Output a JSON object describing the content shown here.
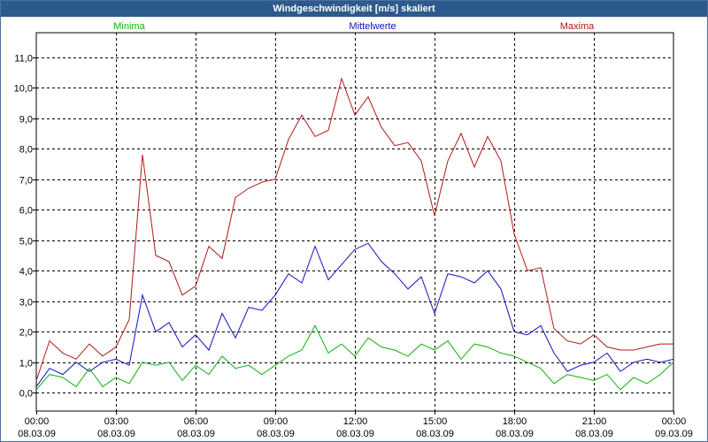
{
  "window": {
    "title": "Windgeschwindigkeit [m/s] skaliert"
  },
  "colors": {
    "minima": "#10b010",
    "mean": "#1010c0",
    "maxima": "#b01818",
    "grid": "#000000",
    "text": "#000000"
  },
  "chart_data": {
    "type": "line",
    "title": "Windgeschwindigkeit [m/s] skaliert",
    "grid": true,
    "legend": "top",
    "x_unit": "hours",
    "xlim": [
      0,
      24
    ],
    "ylim": [
      -0.6,
      11.8
    ],
    "y_ticks": [
      0,
      1,
      2,
      3,
      4,
      5,
      6,
      7,
      8,
      9,
      10,
      11
    ],
    "y_tick_labels": [
      "0,0",
      "1,0",
      "2,0",
      "3,0",
      "4,0",
      "5,0",
      "6,0",
      "7,0",
      "8,0",
      "9,0",
      "10,0",
      "11,0"
    ],
    "x_ticks": [
      0,
      3,
      6,
      9,
      12,
      15,
      18,
      21,
      24
    ],
    "x_tick_labels": [
      {
        "time": "00:00",
        "date": "08.03.09"
      },
      {
        "time": "03:00",
        "date": "08.03.09"
      },
      {
        "time": "06:00",
        "date": "08.03.09"
      },
      {
        "time": "09:00",
        "date": "08.03.09"
      },
      {
        "time": "12:00",
        "date": "08.03.09"
      },
      {
        "time": "15:00",
        "date": "08.03.09"
      },
      {
        "time": "18:00",
        "date": "08.03.09"
      },
      {
        "time": "21:00",
        "date": "08.03.09"
      },
      {
        "time": "00:00",
        "date": "09.03.09"
      }
    ],
    "series": [
      {
        "name": "Minima",
        "key": "minima",
        "x": [
          0,
          0.5,
          1,
          1.5,
          2,
          2.5,
          3,
          3.5,
          4,
          4.5,
          5,
          5.5,
          6,
          6.5,
          7,
          7.5,
          8,
          8.5,
          9,
          9.5,
          10,
          10.5,
          11,
          11.5,
          12,
          12.5,
          13,
          13.5,
          14,
          14.5,
          15,
          15.5,
          16,
          16.5,
          17,
          17.5,
          18,
          18.5,
          19,
          19.5,
          20,
          20.5,
          21,
          21.5,
          22,
          22.5,
          23,
          23.5,
          24
        ],
        "values": [
          0.1,
          0.6,
          0.5,
          0.2,
          0.8,
          0.2,
          0.5,
          0.3,
          1.0,
          0.9,
          1.0,
          0.4,
          0.9,
          0.6,
          1.2,
          0.8,
          0.9,
          0.6,
          0.9,
          1.2,
          1.4,
          2.2,
          1.3,
          1.6,
          1.2,
          1.8,
          1.5,
          1.4,
          1.2,
          1.6,
          1.4,
          1.7,
          1.1,
          1.6,
          1.5,
          1.3,
          1.2,
          1.0,
          0.8,
          0.3,
          0.6,
          0.5,
          0.4,
          0.6,
          0.1,
          0.5,
          0.3,
          0.6,
          1.0
        ]
      },
      {
        "name": "Mittelwerte",
        "key": "mean",
        "x": [
          0,
          0.5,
          1,
          1.5,
          2,
          2.5,
          3,
          3.5,
          4,
          4.5,
          5,
          5.5,
          6,
          6.5,
          7,
          7.5,
          8,
          8.5,
          9,
          9.5,
          10,
          10.5,
          11,
          11.5,
          12,
          12.5,
          13,
          13.5,
          14,
          14.5,
          15,
          15.5,
          16,
          16.5,
          17,
          17.5,
          18,
          18.5,
          19,
          19.5,
          20,
          20.5,
          21,
          21.5,
          22,
          22.5,
          23,
          23.5,
          24
        ],
        "values": [
          0.2,
          0.8,
          0.6,
          1.0,
          0.7,
          1.0,
          1.1,
          0.9,
          3.2,
          2.0,
          2.3,
          1.5,
          1.9,
          1.4,
          2.6,
          1.8,
          2.8,
          2.7,
          3.2,
          3.9,
          3.6,
          4.8,
          3.7,
          4.2,
          4.7,
          4.9,
          4.3,
          3.9,
          3.4,
          3.8,
          2.6,
          3.9,
          3.8,
          3.6,
          4.0,
          3.4,
          2.0,
          1.9,
          2.2,
          1.3,
          0.7,
          0.9,
          1.0,
          1.3,
          0.7,
          1.0,
          1.1,
          1.0,
          1.1
        ]
      },
      {
        "name": "Maxima",
        "key": "maxima",
        "x": [
          0,
          0.5,
          1,
          1.5,
          2,
          2.5,
          3,
          3.5,
          4,
          4.5,
          5,
          5.5,
          6,
          6.5,
          7,
          7.5,
          8,
          8.5,
          9,
          9.5,
          10,
          10.5,
          11,
          11.5,
          12,
          12.5,
          13,
          13.5,
          14,
          14.5,
          15,
          15.5,
          16,
          16.5,
          17,
          17.5,
          18,
          18.5,
          19,
          19.5,
          20,
          20.5,
          21,
          21.5,
          22,
          22.5,
          23,
          23.5,
          24
        ],
        "values": [
          0.4,
          1.7,
          1.3,
          1.1,
          1.6,
          1.2,
          1.5,
          2.4,
          7.8,
          4.5,
          4.3,
          3.2,
          3.5,
          4.8,
          4.4,
          6.4,
          6.7,
          6.9,
          7.0,
          8.3,
          9.1,
          8.4,
          8.6,
          10.3,
          9.1,
          9.7,
          8.7,
          8.1,
          8.2,
          7.6,
          5.8,
          7.6,
          8.5,
          7.4,
          8.4,
          7.6,
          5.2,
          4.0,
          4.1,
          2.1,
          1.7,
          1.6,
          1.9,
          1.5,
          1.4,
          1.4,
          1.5,
          1.6,
          1.6
        ]
      }
    ]
  }
}
